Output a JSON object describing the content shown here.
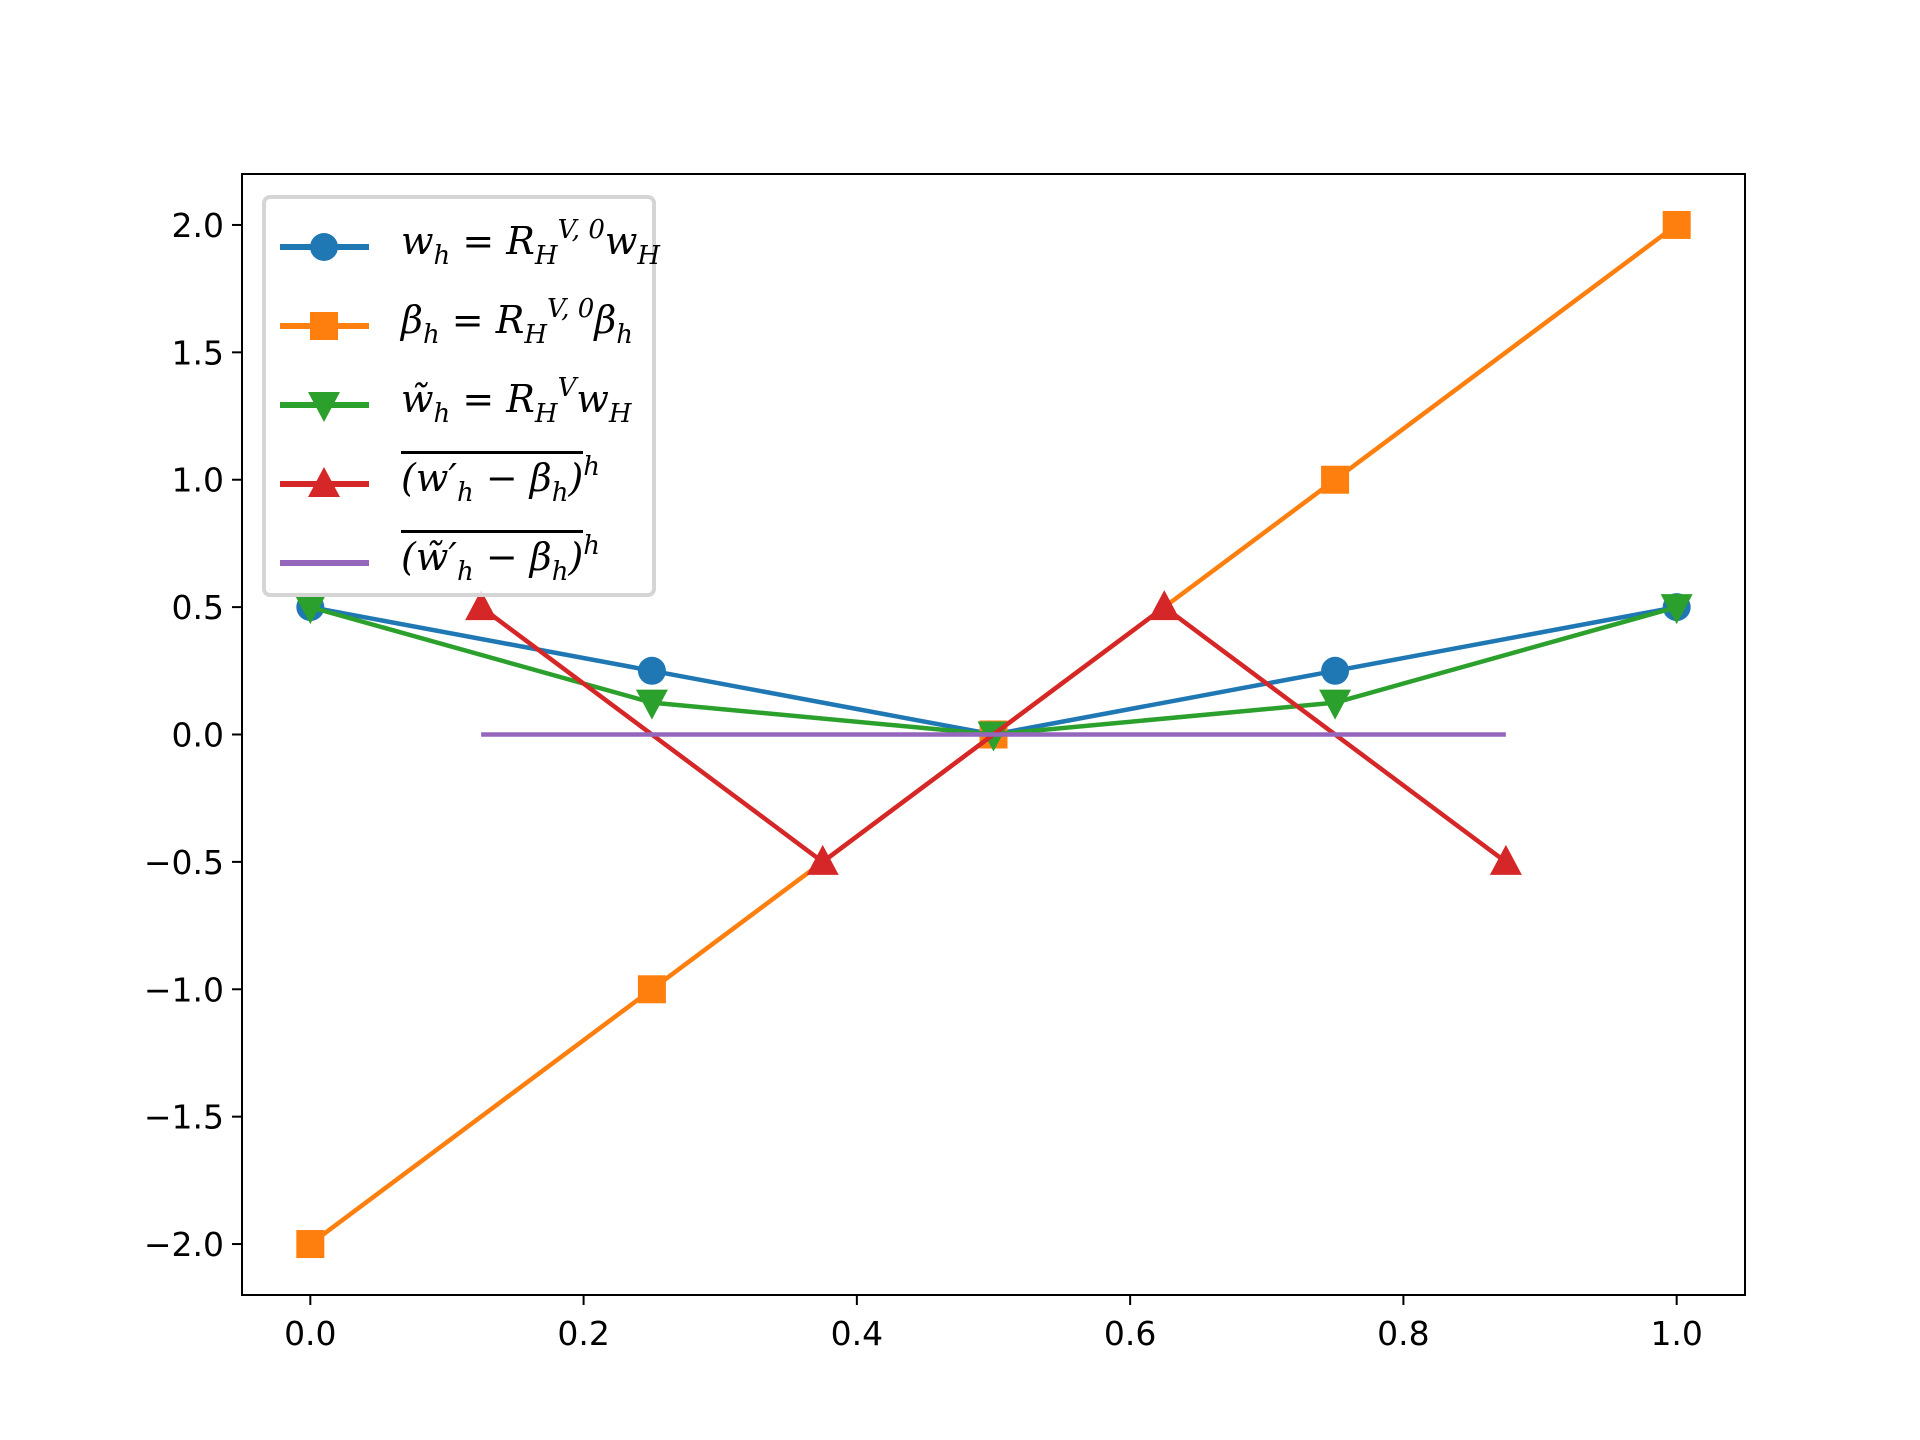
{
  "chart_data": {
    "type": "line",
    "title": "",
    "xlabel": "",
    "ylabel": "",
    "xlim": [
      -0.05,
      1.05
    ],
    "ylim": [
      -2.2,
      2.2
    ],
    "xticks": [
      0.0,
      0.2,
      0.4,
      0.6,
      0.8,
      1.0
    ],
    "xtick_labels": [
      "0.0",
      "0.2",
      "0.4",
      "0.6",
      "0.8",
      "1.0"
    ],
    "yticks": [
      2.0,
      1.5,
      1.0,
      0.5,
      0.0,
      -0.5,
      -1.0,
      -1.5,
      -2.0
    ],
    "ytick_labels": [
      "2.0",
      "1.5",
      "1.0",
      "0.5",
      "0.0",
      "−0.5",
      "−1.0",
      "−1.5",
      "−2.0"
    ],
    "grid": false,
    "legend_position": "top-left",
    "series": [
      {
        "name": "w_h = R_H^{V,0} w_H",
        "color": "#1f77b4",
        "marker": "circle",
        "x": [
          0,
          0.25,
          0.5,
          0.75,
          1
        ],
        "y": [
          0.5,
          0.25,
          0,
          0.25,
          0.5
        ],
        "label_parts": [
          {
            "t": "w"
          },
          {
            "t": "h",
            "s": "sub"
          },
          {
            "t": " = R"
          },
          {
            "t": "H",
            "s": "sub"
          },
          {
            "t": "V, 0",
            "s": "sup"
          },
          {
            "t": "w"
          },
          {
            "t": "H",
            "s": "sub"
          }
        ]
      },
      {
        "name": "β_h = R_H^{V,0} β_h",
        "color": "#ff7f0e",
        "marker": "square",
        "x": [
          0,
          0.25,
          0.5,
          0.75,
          1
        ],
        "y": [
          -2,
          -1,
          0,
          1,
          2
        ],
        "label_parts": [
          {
            "t": "β"
          },
          {
            "t": "h",
            "s": "sub"
          },
          {
            "t": " = R"
          },
          {
            "t": "H",
            "s": "sub"
          },
          {
            "t": "V, 0",
            "s": "sup"
          },
          {
            "t": "β"
          },
          {
            "t": "h",
            "s": "sub"
          }
        ]
      },
      {
        "name": "w̃_h = R_H^V w_H",
        "color": "#2ca02c",
        "marker": "triangle-down",
        "x": [
          0,
          0.25,
          0.5,
          0.75,
          1
        ],
        "y": [
          0.5,
          0.125,
          0,
          0.125,
          0.5
        ],
        "label_parts": [
          {
            "t": "w̃"
          },
          {
            "t": "h",
            "s": "sub"
          },
          {
            "t": " = R"
          },
          {
            "t": "H",
            "s": "sub"
          },
          {
            "t": "V",
            "s": "sup"
          },
          {
            "t": "w"
          },
          {
            "t": "H",
            "s": "sub"
          }
        ]
      },
      {
        "name": "overline((w'_h − β_h))^h",
        "color": "#d62728",
        "marker": "triangle-up",
        "x": [
          0.125,
          0.375,
          0.625,
          0.875
        ],
        "y": [
          0.5,
          -0.5,
          0.5,
          -0.5
        ],
        "label_parts": [
          {
            "t": "(w′",
            "o": true
          },
          {
            "t": "h",
            "s": "sub",
            "o": true
          },
          {
            "t": " − β",
            "o": true
          },
          {
            "t": "h",
            "s": "sub",
            "o": true
          },
          {
            "t": ")",
            "o": true
          },
          {
            "t": "h",
            "s": "sup"
          }
        ]
      },
      {
        "name": "overline((w̃'_h − β_h))^h",
        "color": "#9467bd",
        "marker": "none",
        "x": [
          0.125,
          0.875
        ],
        "y": [
          0,
          0
        ],
        "label_parts": [
          {
            "t": "(w̃′",
            "o": true
          },
          {
            "t": "h",
            "s": "sub",
            "o": true
          },
          {
            "t": " − β",
            "o": true
          },
          {
            "t": "h",
            "s": "sub",
            "o": true
          },
          {
            "t": ")",
            "o": true
          },
          {
            "t": "h",
            "s": "sup"
          }
        ]
      }
    ]
  }
}
